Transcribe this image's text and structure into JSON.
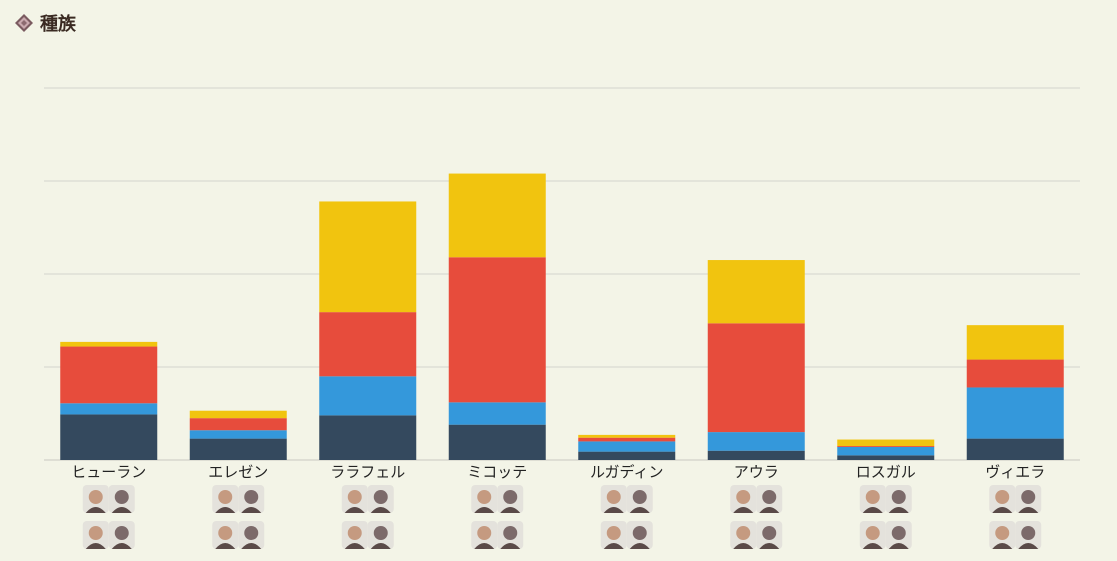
{
  "section": {
    "title": "種族",
    "icon": "diamond-icon"
  },
  "chart_data": {
    "type": "bar",
    "stacked": true,
    "title": "",
    "categories": [
      "ヒューラン",
      "エレゼン",
      "ララフェル",
      "ミコッテ",
      "ルガディン",
      "アウラ",
      "ロスガル",
      "ヴィエラ"
    ],
    "series": [
      {
        "color": "#34495e",
        "values": [
          0.49,
          0.23,
          0.48,
          0.38,
          0.09,
          0.1,
          0.05,
          0.23
        ]
      },
      {
        "color": "#3498db",
        "values": [
          0.12,
          0.09,
          0.42,
          0.24,
          0.11,
          0.2,
          0.09,
          0.55
        ]
      },
      {
        "color": "#e74c3c",
        "values": [
          0.61,
          0.13,
          0.69,
          1.56,
          0.04,
          1.17,
          0.01,
          0.3
        ]
      },
      {
        "color": "#f1c40f",
        "values": [
          0.05,
          0.08,
          1.19,
          0.9,
          0.03,
          0.68,
          0.07,
          0.37
        ]
      }
    ],
    "ylim": [
      0,
      4
    ],
    "grid": true,
    "avatars": [
      [
        "portrait-icon",
        "portrait-icon",
        "portrait-icon",
        "portrait-icon"
      ],
      [
        "portrait-icon",
        "portrait-icon",
        "portrait-icon",
        "portrait-icon"
      ],
      [
        "portrait-icon",
        "portrait-icon",
        "portrait-icon",
        "portrait-icon"
      ],
      [
        "portrait-icon",
        "portrait-icon",
        "portrait-icon",
        "portrait-icon"
      ],
      [
        "portrait-icon",
        "portrait-icon",
        "portrait-icon",
        "portrait-icon"
      ],
      [
        "portrait-icon",
        "portrait-icon",
        "portrait-icon",
        "portrait-icon"
      ],
      [
        "portrait-icon",
        "portrait-icon",
        "portrait-icon",
        "portrait-icon"
      ],
      [
        "portrait-icon",
        "portrait-icon",
        "portrait-icon",
        "portrait-icon"
      ]
    ]
  }
}
